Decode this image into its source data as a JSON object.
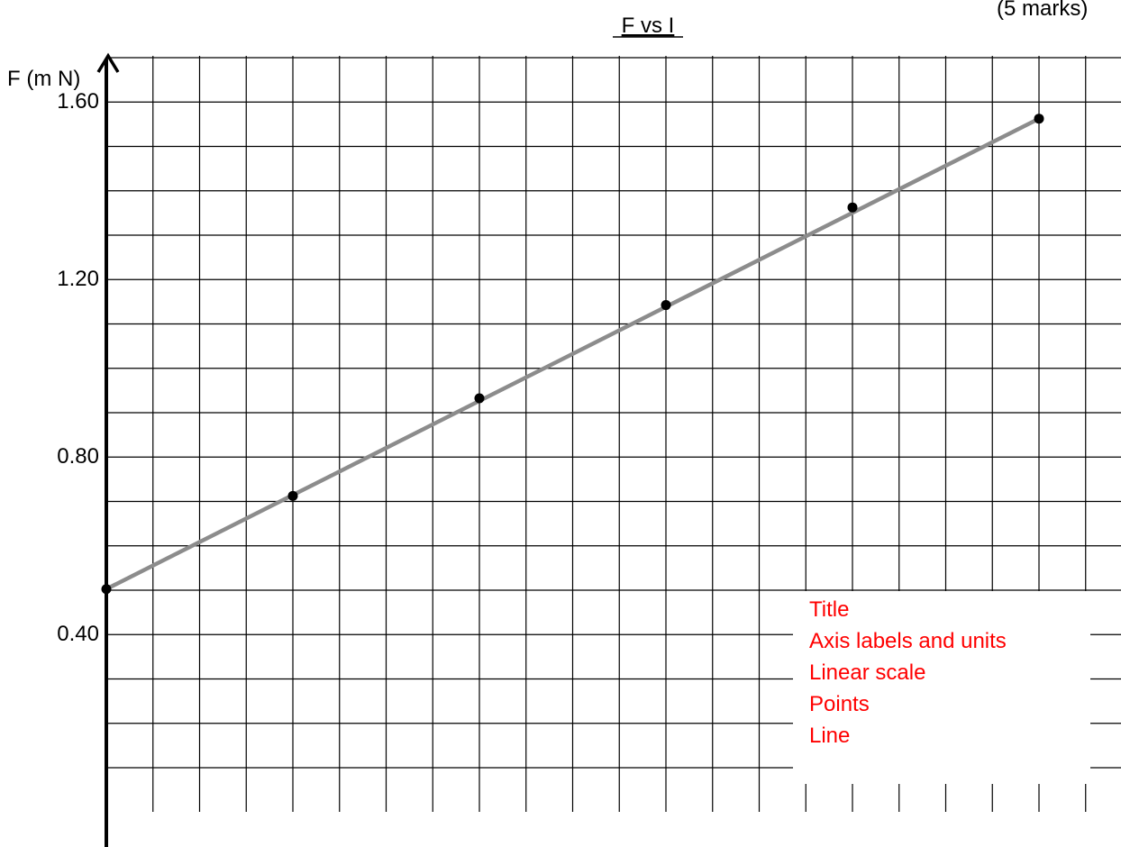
{
  "page": {
    "marks_label": "(5 marks)"
  },
  "colors": {
    "grid": "#000000",
    "axis": "#000000",
    "fit_line": "#8c8c8c",
    "points": "#000000",
    "rubric_text": "#ff0000"
  },
  "rubric": {
    "items": [
      "Title",
      "Axis labels and units",
      "Linear scale",
      "Points",
      "Line"
    ]
  },
  "chart_data": {
    "type": "scatter",
    "title": "F vs I",
    "ylabel": "F (m N)",
    "xlabel": "",
    "ylim": [
      0,
      1.76
    ],
    "y_ticks": [
      "0.40",
      "0.80",
      "1.20",
      "1.60"
    ],
    "grid": true,
    "series": [
      {
        "points": [
          {
            "x": 0,
            "y": 0.5
          },
          {
            "x": 4,
            "y": 0.71
          },
          {
            "x": 8,
            "y": 0.93
          },
          {
            "x": 12,
            "y": 1.14
          },
          {
            "x": 16,
            "y": 1.36
          },
          {
            "x": 20,
            "y": 1.56
          }
        ]
      }
    ],
    "fit_line": {
      "x": [
        0,
        20
      ],
      "y": [
        0.5,
        1.56
      ]
    }
  }
}
